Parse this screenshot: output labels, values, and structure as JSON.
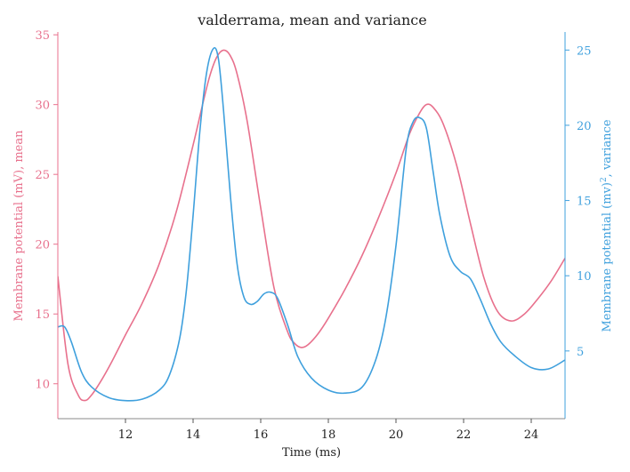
{
  "chart_data": {
    "type": "line",
    "title": "valderrama, mean and variance",
    "xlabel": "Time (ms)",
    "ylabel_left": "Membrane potential (mV), mean",
    "ylabel_right_prefix": "Membrane potential (mv)",
    "ylabel_right_sup": "2",
    "ylabel_right_suffix": ", variance",
    "xlim": [
      10,
      25
    ],
    "ylim_left": [
      7.5,
      35.2
    ],
    "ylim_right": [
      0.5,
      26.2
    ],
    "x_ticks": [
      12,
      14,
      16,
      18,
      20,
      22,
      24
    ],
    "y_left_ticks": [
      10,
      15,
      20,
      25,
      30,
      35
    ],
    "y_right_ticks": [
      5,
      10,
      15,
      20,
      25
    ],
    "grid": false,
    "series": [
      {
        "axis": "left",
        "color": "#e8718d",
        "x": [
          10.0,
          10.3,
          10.6,
          10.8,
          11.0,
          11.3,
          11.6,
          12.0,
          12.5,
          13.0,
          13.5,
          14.0,
          14.3,
          14.5,
          14.7,
          14.9,
          15.1,
          15.3,
          15.6,
          16.0,
          16.4,
          16.8,
          17.0,
          17.2,
          17.4,
          17.7,
          18.0,
          18.5,
          19.0,
          19.5,
          20.0,
          20.4,
          20.7,
          20.9,
          21.1,
          21.4,
          21.8,
          22.2,
          22.6,
          23.0,
          23.4,
          23.8,
          24.2,
          24.6,
          25.0
        ],
        "y": [
          17.7,
          11.4,
          9.2,
          8.8,
          9.2,
          10.3,
          11.6,
          13.5,
          15.8,
          18.6,
          22.3,
          27.1,
          30.2,
          32.1,
          33.4,
          33.9,
          33.5,
          32.2,
          28.8,
          22.6,
          16.8,
          13.7,
          12.9,
          12.6,
          12.8,
          13.6,
          14.7,
          16.8,
          19.2,
          22.0,
          25.1,
          27.9,
          29.4,
          30.0,
          29.8,
          28.6,
          25.6,
          21.5,
          17.6,
          15.2,
          14.5,
          15.0,
          16.1,
          17.4,
          19.0
        ]
      },
      {
        "axis": "right",
        "color": "#3fa0dd",
        "x": [
          10.0,
          10.2,
          10.4,
          10.7,
          11.0,
          11.5,
          12.0,
          12.5,
          13.0,
          13.3,
          13.6,
          13.8,
          14.0,
          14.2,
          14.4,
          14.6,
          14.75,
          14.9,
          15.1,
          15.3,
          15.5,
          15.7,
          15.9,
          16.1,
          16.3,
          16.5,
          16.8,
          17.1,
          17.5,
          18.0,
          18.5,
          19.0,
          19.4,
          19.7,
          20.0,
          20.3,
          20.5,
          20.7,
          20.9,
          21.1,
          21.3,
          21.6,
          21.9,
          22.2,
          22.5,
          22.8,
          23.1,
          23.5,
          24.0,
          24.5,
          25.0
        ],
        "y": [
          6.6,
          6.6,
          5.6,
          3.6,
          2.6,
          1.9,
          1.7,
          1.8,
          2.4,
          3.4,
          5.8,
          9.0,
          14.0,
          19.6,
          23.5,
          25.1,
          24.4,
          21.0,
          15.4,
          10.8,
          8.6,
          8.1,
          8.3,
          8.8,
          8.9,
          8.5,
          6.7,
          4.6,
          3.2,
          2.4,
          2.2,
          2.6,
          4.4,
          7.2,
          12.0,
          18.4,
          20.2,
          20.5,
          19.8,
          16.9,
          14.0,
          11.3,
          10.3,
          9.8,
          8.4,
          6.8,
          5.6,
          4.7,
          3.9,
          3.8,
          4.4
        ]
      }
    ]
  }
}
